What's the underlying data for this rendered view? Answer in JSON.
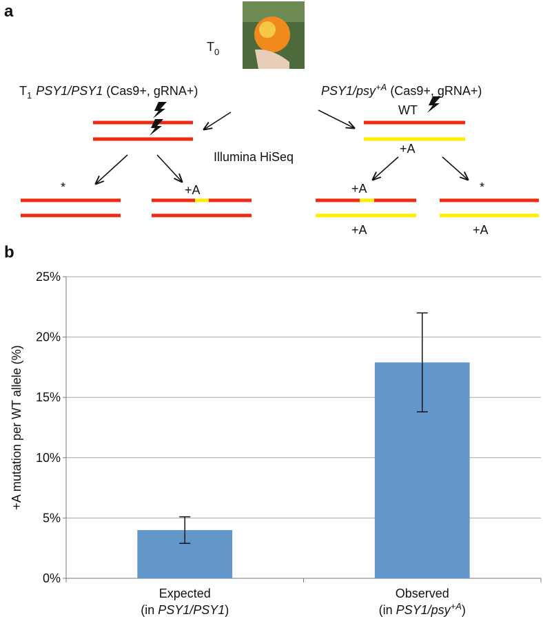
{
  "diagram": {
    "panel_label": "a",
    "t0": {
      "base": "T",
      "sub": "0"
    },
    "left_header": {
      "base": "T",
      "sub": "1",
      "gene": "PSY1/PSY1",
      "rest": " (Cas9+, gRNA+)"
    },
    "right_header": {
      "gene": "PSY1/psy",
      "sup": "+A",
      "rest": " (Cas9+, gRNA+)"
    },
    "wt": "WT",
    "method": "Illumina HiSeq",
    "right_insert": "+A",
    "outcomes": [
      {
        "top": "*"
      },
      {
        "top": "+A"
      },
      {
        "top": "+A",
        "bottom": "+A"
      },
      {
        "top": "*",
        "bottom": "+A"
      }
    ]
  },
  "chart_data": {
    "type": "bar",
    "panel_label": "b",
    "y_label": "+A mutation per WT allele (%)",
    "categories": [
      "Expected",
      "Observed"
    ],
    "category_notes": [
      [
        "(in ",
        "PSY1/PSY1",
        ")"
      ],
      [
        "(in ",
        "PSY1/psy",
        "+A",
        ")"
      ]
    ],
    "values": [
      4.0,
      17.9
    ],
    "errors": [
      1.1,
      4.1
    ],
    "color": "#6497c9",
    "ylim": [
      0,
      25
    ],
    "yticks": [
      {
        "value": 0,
        "label": "0%"
      },
      {
        "value": 5,
        "label": "5%"
      },
      {
        "value": 10,
        "label": "10%"
      },
      {
        "value": 15,
        "label": "15%"
      },
      {
        "value": 20,
        "label": "20%"
      },
      {
        "value": 25,
        "label": "25%"
      }
    ],
    "grid": true
  }
}
